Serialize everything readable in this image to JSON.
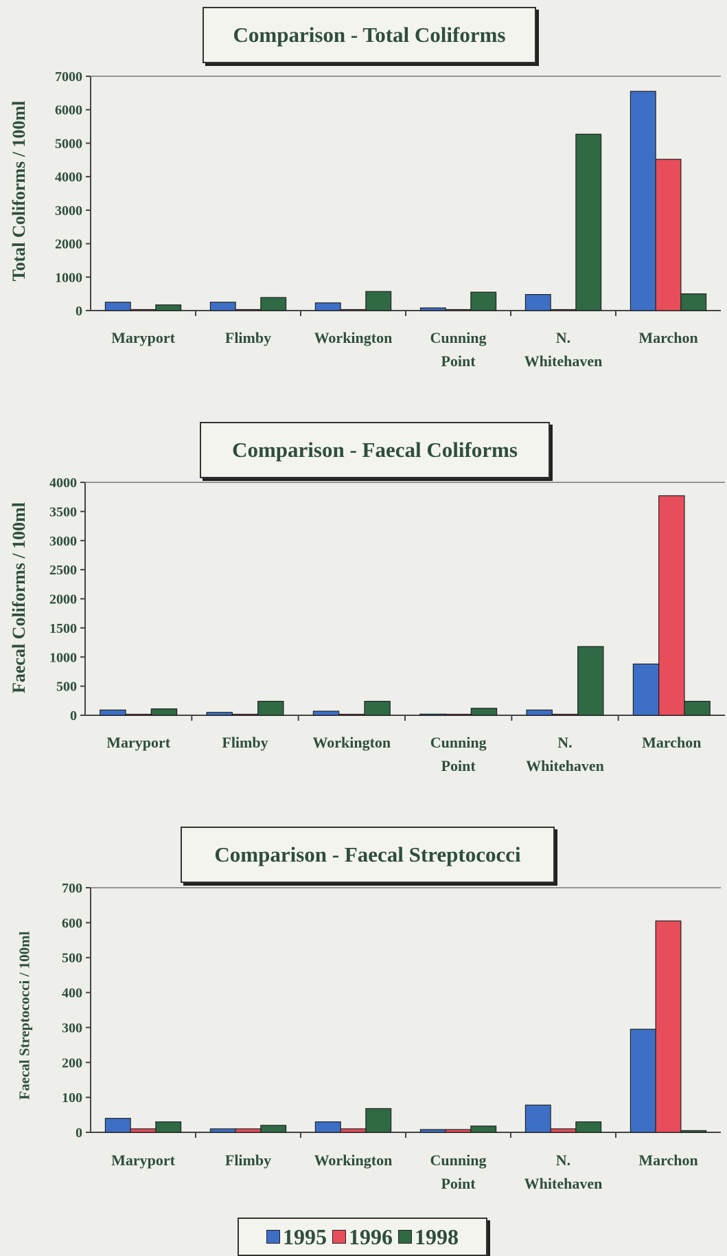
{
  "chart_data": [
    {
      "type": "bar",
      "title": "Comparison - Total Coliforms",
      "ylabel": "Total Coliforms / 100ml",
      "ylim": [
        0,
        7000
      ],
      "yticks": [
        0,
        1000,
        2000,
        3000,
        4000,
        5000,
        6000,
        7000
      ],
      "categories": [
        "Maryport",
        "Flimby",
        "Workington",
        "Cunning Point",
        "N. Whitehaven",
        "Marchon"
      ],
      "category_lines": [
        [
          "Maryport"
        ],
        [
          "Flimby"
        ],
        [
          "Workington"
        ],
        [
          "Cunning",
          "Point"
        ],
        [
          "N.",
          "Whitehaven"
        ],
        [
          "Marchon"
        ]
      ],
      "series": [
        {
          "name": "1995",
          "color": "#3d6fc6",
          "values": [
            250,
            250,
            230,
            80,
            480,
            6550
          ]
        },
        {
          "name": "1996",
          "color": "#e84d5b",
          "values": [
            20,
            20,
            20,
            20,
            20,
            4520
          ]
        },
        {
          "name": "1998",
          "color": "#2f6a45",
          "values": [
            170,
            390,
            570,
            550,
            5270,
            500
          ]
        }
      ],
      "grid": false
    },
    {
      "type": "bar",
      "title": "Comparison - Faecal Coliforms",
      "ylabel": "Faecal Coliforms / 100ml",
      "ylim": [
        0,
        4000
      ],
      "yticks": [
        0,
        500,
        1000,
        1500,
        2000,
        2500,
        3000,
        3500,
        4000
      ],
      "categories": [
        "Maryport",
        "Flimby",
        "Workington",
        "Cunning Point",
        "N. Whitehaven",
        "Marchon"
      ],
      "category_lines": [
        [
          "Maryport"
        ],
        [
          "Flimby"
        ],
        [
          "Workington"
        ],
        [
          "Cunning",
          "Point"
        ],
        [
          "N.",
          "Whitehaven"
        ],
        [
          "Marchon"
        ]
      ],
      "series": [
        {
          "name": "1995",
          "color": "#3d6fc6",
          "values": [
            90,
            50,
            70,
            20,
            90,
            880
          ]
        },
        {
          "name": "1996",
          "color": "#e84d5b",
          "values": [
            10,
            10,
            10,
            10,
            10,
            3770
          ]
        },
        {
          "name": "1998",
          "color": "#2f6a45",
          "values": [
            110,
            240,
            240,
            120,
            1180,
            240
          ]
        }
      ],
      "grid": false
    },
    {
      "type": "bar",
      "title": "Comparison - Faecal Streptococci",
      "ylabel": "Faecal Streptococci / 100ml",
      "ylim": [
        0,
        700
      ],
      "yticks": [
        0,
        100,
        200,
        300,
        400,
        500,
        600,
        700
      ],
      "categories": [
        "Maryport",
        "Flimby",
        "Workington",
        "Cunning Point",
        "N. Whitehaven",
        "Marchon"
      ],
      "category_lines": [
        [
          "Maryport"
        ],
        [
          "Flimby"
        ],
        [
          "Workington"
        ],
        [
          "Cunning",
          "Point"
        ],
        [
          "N.",
          "Whitehaven"
        ],
        [
          "Marchon"
        ]
      ],
      "series": [
        {
          "name": "1995",
          "color": "#3d6fc6",
          "values": [
            40,
            10,
            30,
            8,
            78,
            295
          ]
        },
        {
          "name": "1996",
          "color": "#e84d5b",
          "values": [
            10,
            10,
            10,
            8,
            10,
            605
          ]
        },
        {
          "name": "1998",
          "color": "#2f6a45",
          "values": [
            30,
            20,
            68,
            18,
            30,
            5
          ]
        }
      ],
      "grid": false
    }
  ],
  "legend": {
    "placement": "bottom-center",
    "items": [
      {
        "label": "1995",
        "color": "#3d6fc6"
      },
      {
        "label": "1996",
        "color": "#e84d5b"
      },
      {
        "label": "1998",
        "color": "#2f6a45"
      }
    ]
  }
}
